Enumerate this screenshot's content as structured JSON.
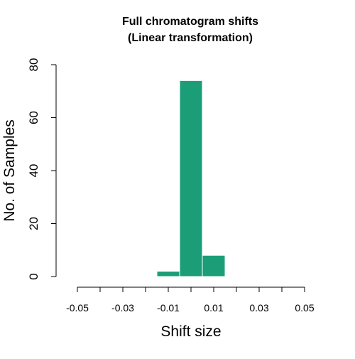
{
  "chart_data": {
    "type": "bar",
    "title": "Full chromatogram shifts",
    "subtitle": "(Linear transformation)",
    "xlabel": "Shift size",
    "ylabel": "No. of Samples",
    "xlim": [
      -0.05,
      0.05
    ],
    "ylim": [
      0,
      80
    ],
    "x_tick_values": [
      -0.05,
      -0.04,
      -0.03,
      -0.02,
      -0.01,
      0.0,
      0.01,
      0.02,
      0.03,
      0.04,
      0.05
    ],
    "x_tick_labels": [
      "-0.05",
      "",
      "-0.03",
      "",
      "-0.01",
      "",
      "0.01",
      "",
      "0.03",
      "",
      "0.05"
    ],
    "y_tick_values": [
      0,
      20,
      40,
      60,
      80
    ],
    "y_tick_labels": [
      "0",
      "20",
      "40",
      "60",
      "80"
    ],
    "bins": [
      {
        "start": -0.015,
        "end": -0.005,
        "count": 2
      },
      {
        "start": -0.005,
        "end": 0.005,
        "count": 74
      },
      {
        "start": 0.005,
        "end": 0.015,
        "count": 8
      }
    ],
    "bar_color": "#1b9e77",
    "grid": false,
    "legend": "none"
  }
}
